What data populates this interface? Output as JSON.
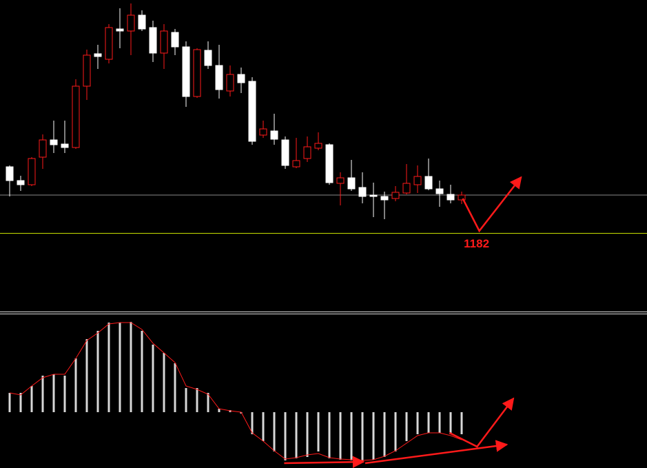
{
  "chart_data": [
    {
      "type": "candlestick",
      "open": [
        1275,
        1255,
        1249,
        1289,
        1314,
        1308,
        1303,
        1392,
        1439,
        1431,
        1475,
        1472,
        1495,
        1477,
        1440,
        1470,
        1449,
        1377,
        1444,
        1422,
        1385,
        1409,
        1399,
        1321,
        1327,
        1314,
        1275,
        1287,
        1302,
        1307,
        1251,
        1259,
        1245,
        1234,
        1232,
        1229,
        1237,
        1249,
        1261,
        1243,
        1235,
        1227
      ],
      "high": [
        1277,
        1262,
        1289,
        1322,
        1342,
        1342,
        1402,
        1445,
        1452,
        1482,
        1505,
        1512,
        1502,
        1487,
        1482,
        1475,
        1457,
        1447,
        1457,
        1452,
        1422,
        1419,
        1405,
        1342,
        1352,
        1319,
        1317,
        1319,
        1325,
        1309,
        1267,
        1285,
        1267,
        1252,
        1239,
        1247,
        1279,
        1277,
        1287,
        1255,
        1249,
        1239
      ],
      "low": [
        1232,
        1240,
        1247,
        1272,
        1295,
        1295,
        1301,
        1372,
        1417,
        1425,
        1447,
        1437,
        1472,
        1427,
        1417,
        1437,
        1362,
        1375,
        1417,
        1374,
        1377,
        1382,
        1307,
        1317,
        1307,
        1272,
        1273,
        1282,
        1299,
        1249,
        1219,
        1240,
        1222,
        1202,
        1199,
        1225,
        1235,
        1237,
        1241,
        1217,
        1222,
        1221
      ],
      "close": [
        1255,
        1249,
        1287,
        1314,
        1307,
        1303,
        1392,
        1437,
        1435,
        1477,
        1472,
        1495,
        1475,
        1440,
        1472,
        1449,
        1377,
        1445,
        1422,
        1387,
        1409,
        1397,
        1312,
        1330,
        1315,
        1277,
        1284,
        1304,
        1309,
        1252,
        1259,
        1243,
        1232,
        1232,
        1227,
        1238,
        1251,
        1261,
        1243,
        1236,
        1227,
        1234
      ],
      "ylim": [
        1179,
        1517
      ],
      "bull_color": "#ff1a1a",
      "bear_color": "#ffffff",
      "price_line": 1234,
      "price_line_color": "#8a8a8a",
      "arrows": [
        {
          "x": [
            41.1,
            42.6,
            46.4
          ],
          "y": [
            1229,
            1182,
            1260
          ],
          "color": "#ff1a1a"
        }
      ],
      "annotation": "1182"
    },
    {
      "type": "bar",
      "values": [
        28,
        28,
        38,
        53,
        55,
        53,
        78,
        106,
        118,
        130,
        130,
        131,
        118,
        98,
        86,
        71,
        35,
        35,
        28,
        5,
        3,
        -2,
        -32,
        -42,
        -57,
        -70,
        -67,
        -65,
        -57,
        -67,
        -69,
        -70,
        -71,
        -69,
        -65,
        -57,
        -42,
        -32,
        -30,
        -30,
        -32,
        -32
      ],
      "color": "#d8d8d8",
      "signal": {
        "color": "#ff1a1a",
        "values": [
          28,
          25,
          38,
          50,
          55,
          55,
          78,
          104,
          115,
          128,
          130,
          130,
          120,
          100,
          86,
          72,
          38,
          33,
          26,
          5,
          2,
          0,
          -30,
          -42,
          -56,
          -68,
          -66,
          -62,
          -60,
          -66,
          -68,
          -69,
          -70,
          -69,
          -64,
          -56,
          -45,
          -34,
          -30,
          -30,
          -34,
          -40
        ]
      },
      "ylim": [
        -81,
        143
      ],
      "arrows": [
        {
          "x": [
            24.9,
            32.1
          ],
          "y": [
            -74,
            -72
          ],
          "color": "#ff1a1a"
        },
        {
          "x": [
            32.25,
            45.1
          ],
          "y": [
            -74,
            -47
          ],
          "color": "#ff1a1a"
        },
        {
          "x": [
            39.9,
            42.4,
            45.7
          ],
          "y": [
            -30,
            -50,
            20
          ],
          "color": "#ff1a1a"
        }
      ]
    }
  ]
}
